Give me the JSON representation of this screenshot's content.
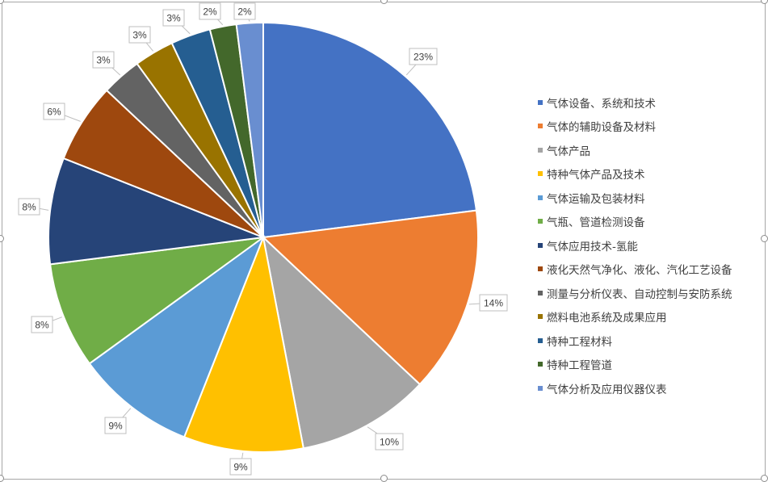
{
  "chart_data": {
    "type": "pie",
    "title": "",
    "categories": [
      "气体设备、系统和技术",
      "气体的辅助设备及材料",
      "气体产品",
      "特种气体产品及技术",
      "气体运输及包装材料",
      "气瓶、管道检测设备",
      "气体应用技术-氢能",
      "液化天然气净化、液化、汽化工艺设备",
      "测量与分析仪表、自动控制与安防系统",
      "燃料电池系统及成果应用",
      "特种工程材料",
      "特种工程管道",
      "气体分析及应用仪器仪表"
    ],
    "values": [
      23,
      14,
      10,
      9,
      9,
      8,
      8,
      6,
      3,
      3,
      3,
      2,
      2
    ],
    "labels": [
      "23%",
      "14%",
      "10%",
      "9%",
      "9%",
      "8%",
      "8%",
      "6%",
      "3%",
      "3%",
      "3%",
      "2%",
      "2%"
    ],
    "colors": [
      "#4472C4",
      "#ED7D31",
      "#A5A5A5",
      "#FFC000",
      "#5B9BD5",
      "#70AD47",
      "#264478",
      "#9E480E",
      "#636363",
      "#997300",
      "#255E91",
      "#43682B",
      "#698ED0"
    ],
    "legend_position": "right"
  }
}
